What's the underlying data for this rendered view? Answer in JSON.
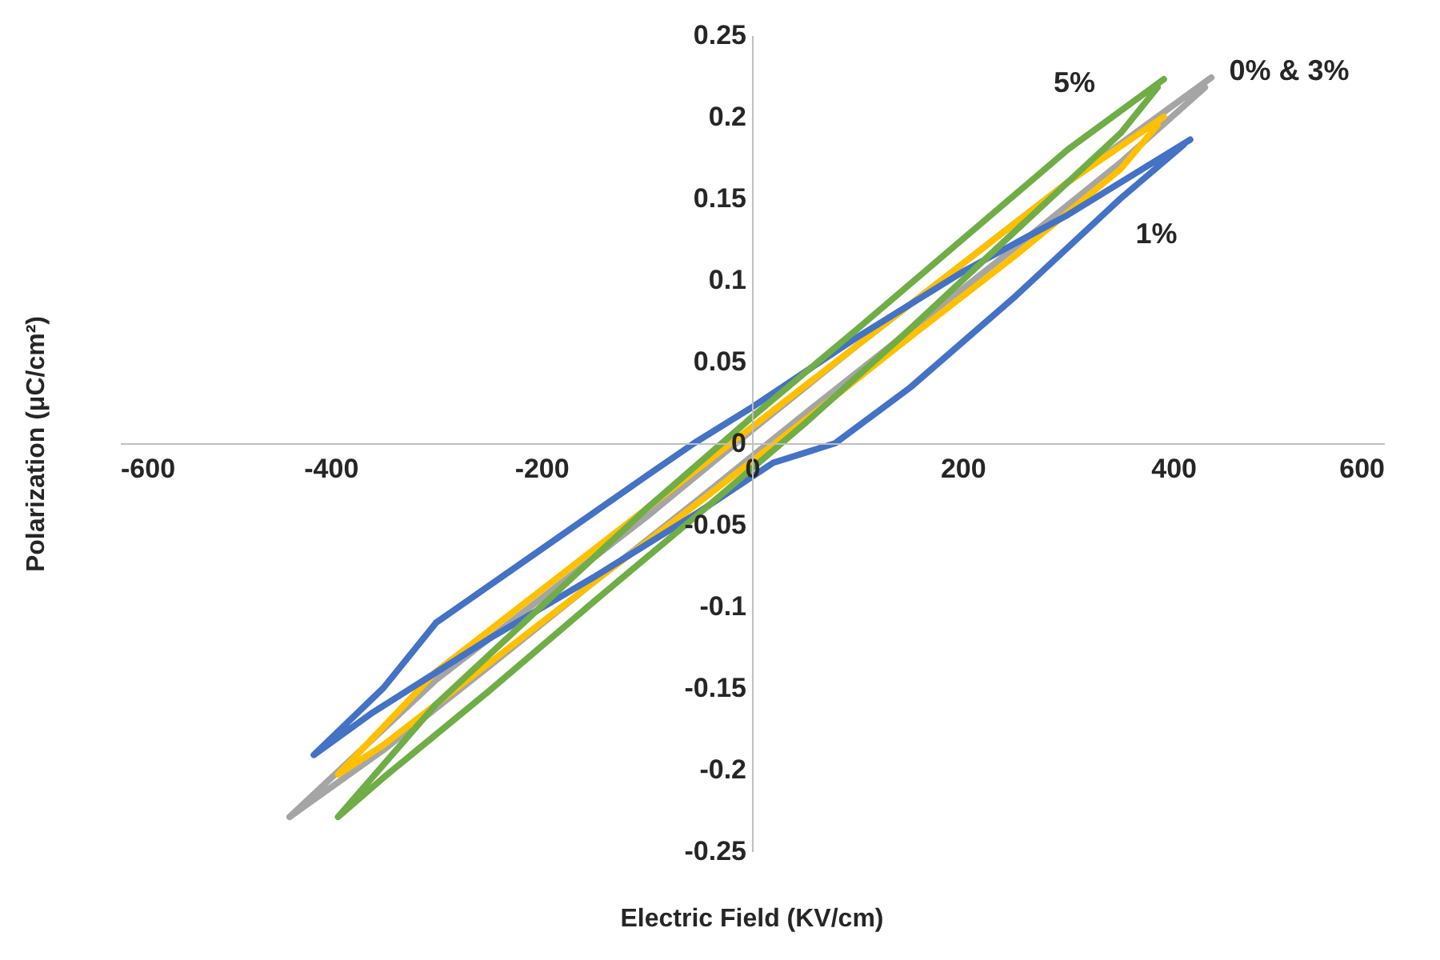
{
  "chart_data": {
    "type": "line",
    "xlabel": "Electric Field (KV/cm)",
    "ylabel": "Polarization (μC/cm²)",
    "xlim": [
      -600,
      600
    ],
    "xticks": [
      -600,
      -400,
      -200,
      0,
      200,
      400,
      600
    ],
    "ylim": [
      -0.25,
      0.25
    ],
    "yticks": [
      -0.25,
      -0.2,
      -0.15,
      -0.1,
      -0.05,
      0,
      0.05,
      0.1,
      0.15,
      0.2,
      0.25
    ],
    "grid": false,
    "legend": false,
    "marker": "none",
    "line_style": "solid",
    "series": [
      {
        "color": "#a5a5a5",
        "x": [
          436,
          300,
          200,
          100,
          0,
          -100,
          -200,
          -300,
          -439,
          -350,
          -250,
          -150,
          -50,
          50,
          150,
          250,
          350,
          430
        ],
        "values": [
          0.224,
          0.16,
          0.11,
          0.06,
          0.008,
          -0.045,
          -0.095,
          -0.145,
          -0.229,
          -0.188,
          -0.137,
          -0.085,
          -0.034,
          0.018,
          0.069,
          0.12,
          0.172,
          0.218
        ]
      },
      {
        "color": "#ffc000",
        "x": [
          391,
          300,
          200,
          100,
          0,
          -100,
          -200,
          -300,
          -393,
          -350,
          -250,
          -150,
          -50,
          50,
          150,
          250,
          350,
          385
        ],
        "values": [
          0.2,
          0.16,
          0.11,
          0.06,
          0.01,
          -0.04,
          -0.09,
          -0.14,
          -0.203,
          -0.185,
          -0.135,
          -0.085,
          -0.036,
          0.014,
          0.065,
          0.115,
          0.168,
          0.195
        ]
      },
      {
        "color": "#4472c4",
        "x": [
          416,
          300,
          200,
          100,
          0,
          -55,
          -100,
          -200,
          -300,
          -350,
          -416,
          -360,
          -250,
          -150,
          -50,
          20,
          79,
          150,
          250,
          350,
          410
        ],
        "values": [
          0.186,
          0.14,
          0.105,
          0.065,
          0.022,
          0,
          -0.02,
          -0.065,
          -0.11,
          -0.15,
          -0.191,
          -0.165,
          -0.12,
          -0.082,
          -0.042,
          -0.012,
          0,
          0.034,
          0.09,
          0.15,
          0.183
        ]
      },
      {
        "color": "#70ad47",
        "x": [
          391,
          300,
          200,
          100,
          0,
          -100,
          -200,
          -300,
          -393,
          -350,
          -250,
          -150,
          -50,
          50,
          150,
          250,
          350,
          385
        ],
        "values": [
          0.223,
          0.18,
          0.125,
          0.07,
          0.016,
          -0.04,
          -0.1,
          -0.16,
          -0.229,
          -0.205,
          -0.152,
          -0.097,
          -0.043,
          0.012,
          0.07,
          0.13,
          0.19,
          0.218
        ]
      }
    ],
    "annotations": [
      "5%",
      "0% & 3%",
      "1%"
    ]
  }
}
